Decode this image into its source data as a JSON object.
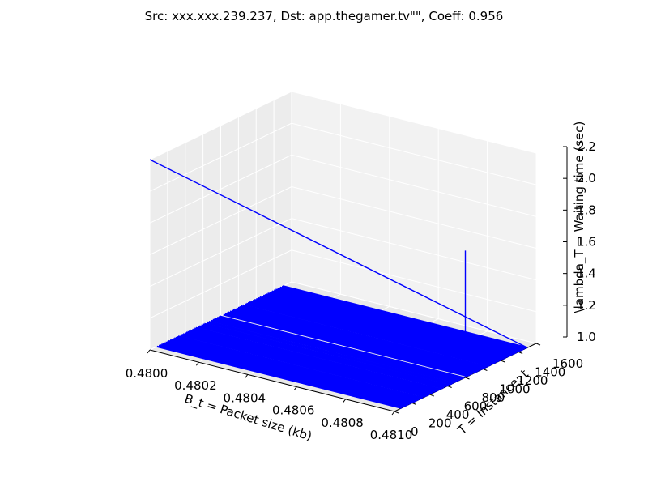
{
  "chart_data": {
    "type": "line",
    "projection": "3d",
    "title": "Src: xxx.xxx.239.237, Dst: app.thegamer.tv\"\", Coeff: 0.956",
    "xlabel": "B_t = Packet size (kb)",
    "ylabel": "T = Instance: t",
    "zlabel": "\\lambda_T = Waiting time (sec)",
    "x_ticks": [
      "0.4800",
      "0.4802",
      "0.4804",
      "0.4806",
      "0.4808",
      "0.4810"
    ],
    "y_ticks": [
      "0",
      "200",
      "400",
      "600",
      "800",
      "1000",
      "1200",
      "1400",
      "1600"
    ],
    "z_ticks": [
      "1.0",
      "1.2",
      "1.4",
      "1.6",
      "1.8",
      "2.0",
      "2.2"
    ],
    "xlim": [
      0.48,
      0.481
    ],
    "ylim": [
      0,
      1600
    ],
    "zlim": [
      1.0,
      2.2
    ],
    "grid": true,
    "legend": "none",
    "line_color": "#0000ff",
    "pane_color": "#f2f2f2",
    "grid_color": "#e6e6e6",
    "series": [
      {
        "lines": [
          {
            "x": [
              0.48,
              0.481
            ],
            "y": [
              0,
              1500
            ],
            "z": [
              2.2,
              1.0
            ]
          },
          {
            "x": [
              0.481,
              0.481
            ],
            "y": [
              800,
              800
            ],
            "z": [
              1.0,
              1.8
            ]
          }
        ],
        "floor_lines_y": [
          80,
          100,
          112,
          130,
          143,
          160,
          178,
          195,
          210,
          228,
          240,
          260,
          275,
          290,
          305,
          320,
          345,
          360,
          375,
          395,
          410,
          425,
          440,
          460,
          478,
          490,
          505,
          520,
          545,
          560,
          580,
          600,
          615,
          640,
          650,
          665,
          690,
          710,
          725,
          740,
          760,
          775,
          790,
          830,
          850,
          870,
          885,
          905,
          925,
          940,
          955,
          975,
          995,
          1010,
          1030,
          1050,
          1075,
          1090,
          1105,
          1125,
          1140,
          1160,
          1180,
          1200,
          1220,
          1240,
          1260,
          1280,
          1295,
          1310,
          1330,
          1350,
          1365,
          1380,
          1400,
          1420,
          1440,
          1455,
          1470,
          1490,
          1500
        ],
        "floor_z": 1.0
      }
    ]
  }
}
